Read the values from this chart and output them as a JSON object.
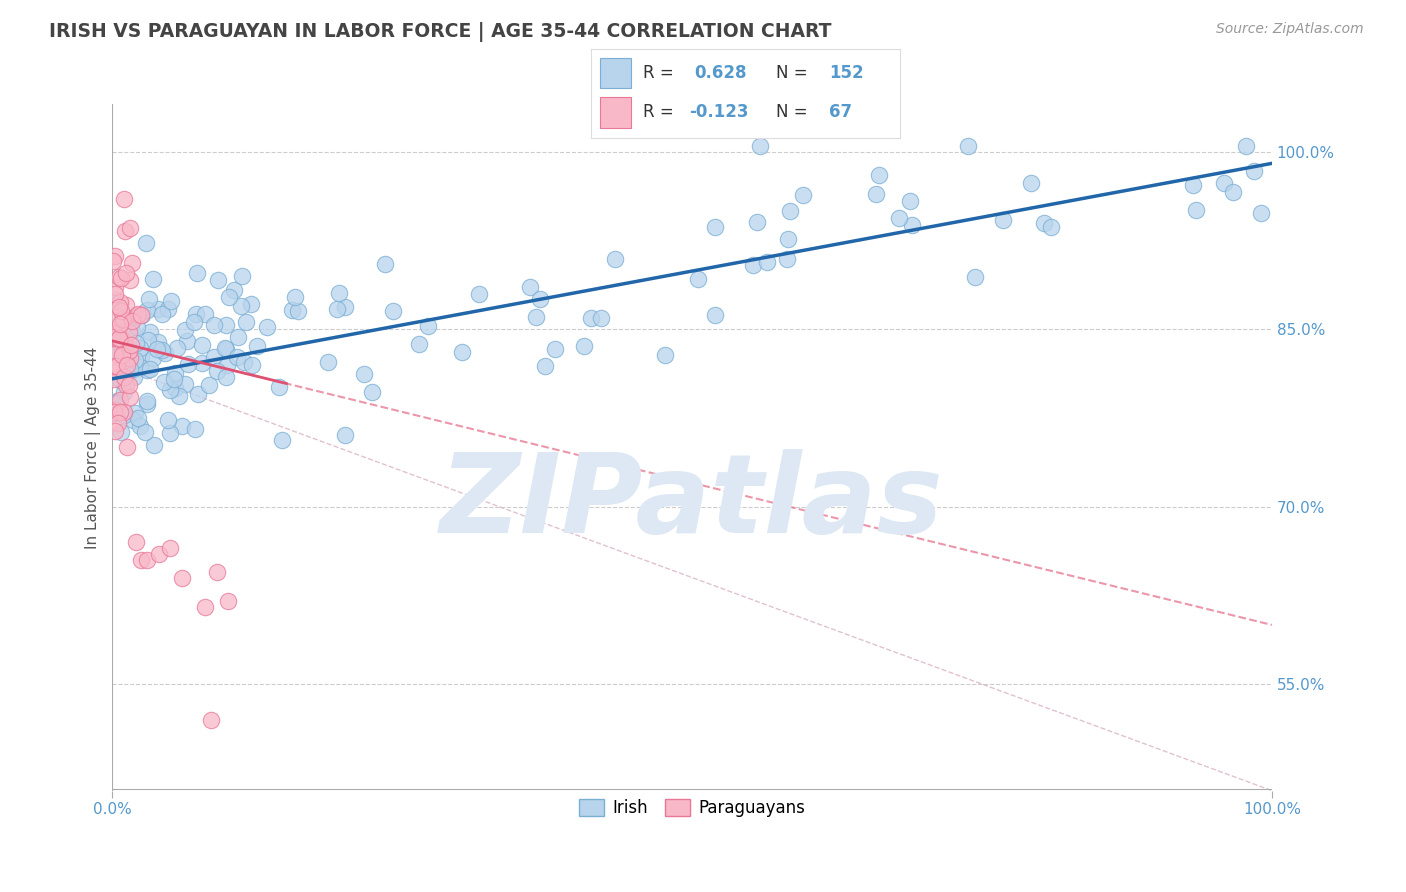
{
  "title": "IRISH VS PARAGUAYAN IN LABOR FORCE | AGE 35-44 CORRELATION CHART",
  "source_text": "Source: ZipAtlas.com",
  "ylabel_label": "In Labor Force | Age 35-44",
  "y_tick_values": [
    0.55,
    0.7,
    0.85,
    1.0
  ],
  "x_min": 0.0,
  "x_max": 1.0,
  "y_min": 0.46,
  "y_max": 1.04,
  "irish_R": 0.628,
  "irish_N": 152,
  "paraguayan_R": -0.123,
  "paraguayan_N": 67,
  "irish_color": "#b8d4ec",
  "irish_edge_color": "#7aaed4",
  "irish_line_color": "#2266aa",
  "paraguayan_color": "#f8b8c8",
  "paraguayan_edge_color": "#e87898",
  "paraguayan_line_color": "#e05070",
  "watermark_color": "#dde8f4",
  "background_color": "#ffffff",
  "grid_color": "#cccccc",
  "title_color": "#444444",
  "axis_tick_color": "#5599cc",
  "diag_line_color": "#ddbbcc",
  "irish_trend_x0": 0.0,
  "irish_trend_x1": 1.0,
  "irish_trend_y0": 0.808,
  "irish_trend_y1": 0.99,
  "para_trend_x0": 0.0,
  "para_trend_x1": 1.0,
  "para_trend_y0": 0.84,
  "para_trend_y1": 0.6
}
